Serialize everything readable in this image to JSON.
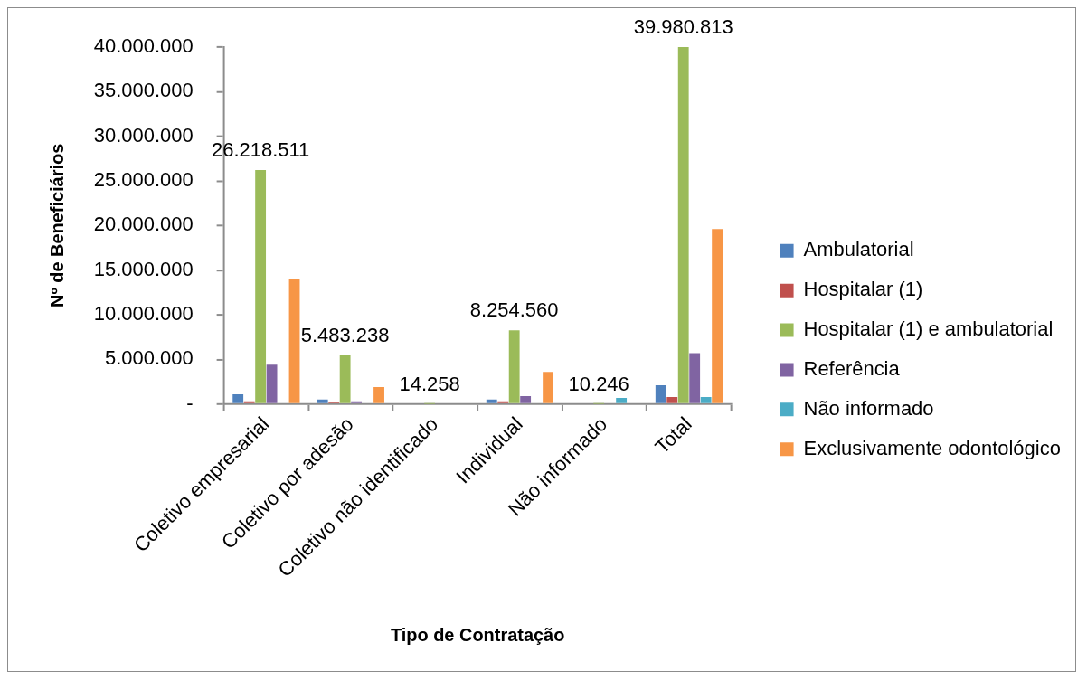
{
  "chart_data": {
    "type": "bar",
    "xlabel": "Tipo de Contratação",
    "ylabel": "Nº de Beneficiários",
    "categories": [
      "Coletivo empresarial",
      "Coletivo por adesão",
      "Coletivo não identificado",
      "Individual",
      "Não informado",
      "Total"
    ],
    "series": [
      {
        "name": "Ambulatorial",
        "color": "#4f81bd",
        "values": [
          1100000,
          500000,
          0,
          500000,
          0,
          2100000
        ]
      },
      {
        "name": "Hospitalar (1)",
        "color": "#c0504d",
        "values": [
          300000,
          200000,
          0,
          300000,
          0,
          800000
        ]
      },
      {
        "name": "Hospitalar (1) e ambulatorial",
        "color": "#9bbb59",
        "values": [
          26218511,
          5483238,
          14258,
          8254560,
          10246,
          39980813
        ],
        "value_labels": [
          "26.218.511",
          "5.483.238",
          "14.258",
          "8.254.560",
          "10.246",
          "39.980.813"
        ]
      },
      {
        "name": "Referência",
        "color": "#8064a2",
        "values": [
          4400000,
          300000,
          0,
          900000,
          0,
          5700000
        ]
      },
      {
        "name": "Não informado",
        "color": "#4bacc6",
        "values": [
          0,
          0,
          0,
          0,
          700000,
          800000
        ]
      },
      {
        "name": "Exclusivamente odontológico",
        "color": "#f79646",
        "values": [
          14000000,
          1900000,
          0,
          3600000,
          100000,
          19600000
        ]
      }
    ],
    "ylim": [
      0,
      40000000
    ],
    "yticks": [
      {
        "value": 0,
        "label": "-"
      },
      {
        "value": 5000000,
        "label": "5.000.000"
      },
      {
        "value": 10000000,
        "label": "10.000.000"
      },
      {
        "value": 15000000,
        "label": "15.000.000"
      },
      {
        "value": 20000000,
        "label": "20.000.000"
      },
      {
        "value": 25000000,
        "label": "25.000.000"
      },
      {
        "value": 30000000,
        "label": "30.000.000"
      },
      {
        "value": 35000000,
        "label": "35.000.000"
      },
      {
        "value": 40000000,
        "label": "40.000.000"
      }
    ],
    "legend": "right"
  }
}
